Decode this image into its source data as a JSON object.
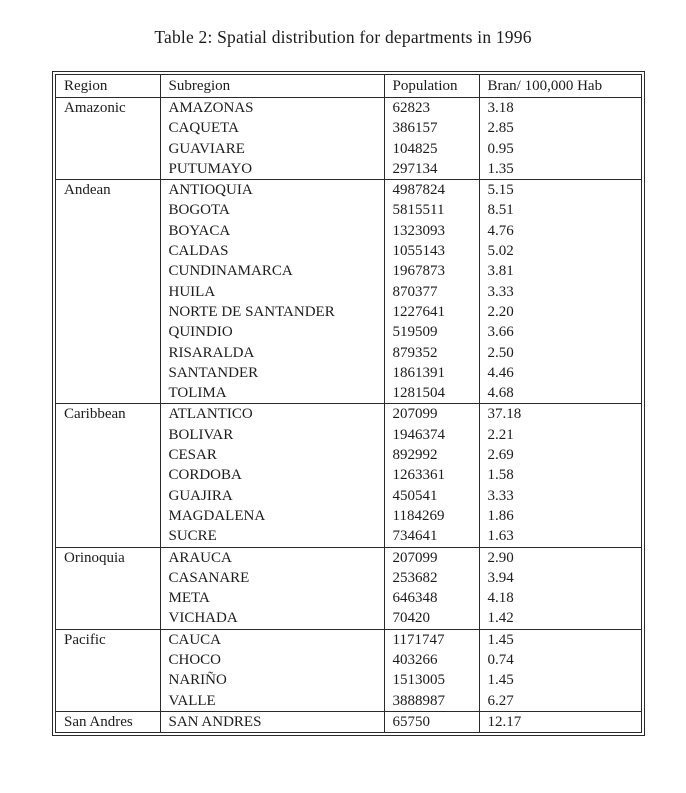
{
  "title": "Table 2: Spatial distribution for departments in 1996",
  "colors": {
    "background": "#ffffff",
    "text": "#1c1c1c",
    "border": "#2a2a2a"
  },
  "table": {
    "columns": [
      "Region",
      "Subregion",
      "Population",
      "Bran/ 100,000 Hab"
    ],
    "groups": [
      {
        "region": "Amazonic",
        "rows": [
          {
            "subregion": "AMAZONAS",
            "population": "62823",
            "rate": "3.18"
          },
          {
            "subregion": "CAQUETA",
            "population": "386157",
            "rate": "2.85"
          },
          {
            "subregion": "GUAVIARE",
            "population": "104825",
            "rate": "0.95"
          },
          {
            "subregion": "PUTUMAYO",
            "population": "297134",
            "rate": "1.35"
          }
        ]
      },
      {
        "region": "Andean",
        "rows": [
          {
            "subregion": "ANTIOQUIA",
            "population": "4987824",
            "rate": "5.15"
          },
          {
            "subregion": "BOGOTA",
            "population": "5815511",
            "rate": "8.51"
          },
          {
            "subregion": "BOYACA",
            "population": "1323093",
            "rate": "4.76"
          },
          {
            "subregion": "CALDAS",
            "population": "1055143",
            "rate": "5.02"
          },
          {
            "subregion": "CUNDINAMARCA",
            "population": "1967873",
            "rate": "3.81"
          },
          {
            "subregion": "HUILA",
            "population": "870377",
            "rate": "3.33"
          },
          {
            "subregion": "NORTE DE SANTANDER",
            "population": "1227641",
            "rate": "2.20"
          },
          {
            "subregion": "QUINDIO",
            "population": "519509",
            "rate": "3.66"
          },
          {
            "subregion": "RISARALDA",
            "population": "879352",
            "rate": "2.50"
          },
          {
            "subregion": "SANTANDER",
            "population": "1861391",
            "rate": "4.46"
          },
          {
            "subregion": "TOLIMA",
            "population": "1281504",
            "rate": "4.68"
          }
        ]
      },
      {
        "region": "Caribbean",
        "rows": [
          {
            "subregion": "ATLANTICO",
            "population": "207099",
            "rate": "37.18"
          },
          {
            "subregion": "BOLIVAR",
            "population": "1946374",
            "rate": "2.21"
          },
          {
            "subregion": "CESAR",
            "population": "892992",
            "rate": "2.69"
          },
          {
            "subregion": "CORDOBA",
            "population": "1263361",
            "rate": "1.58"
          },
          {
            "subregion": "GUAJIRA",
            "population": "450541",
            "rate": "3.33"
          },
          {
            "subregion": "MAGDALENA",
            "population": "1184269",
            "rate": "1.86"
          },
          {
            "subregion": "SUCRE",
            "population": "734641",
            "rate": "1.63"
          }
        ]
      },
      {
        "region": "Orinoquia",
        "rows": [
          {
            "subregion": "ARAUCA",
            "population": "207099",
            "rate": "2.90"
          },
          {
            "subregion": "CASANARE",
            "population": "253682",
            "rate": "3.94"
          },
          {
            "subregion": "META",
            "population": "646348",
            "rate": "4.18"
          },
          {
            "subregion": "VICHADA",
            "population": "70420",
            "rate": "1.42"
          }
        ]
      },
      {
        "region": "Pacific",
        "rows": [
          {
            "subregion": "CAUCA",
            "population": "1171747",
            "rate": "1.45"
          },
          {
            "subregion": "CHOCO",
            "population": "403266",
            "rate": "0.74"
          },
          {
            "subregion": "NARIÑO",
            "population": "1513005",
            "rate": "1.45"
          },
          {
            "subregion": "VALLE",
            "population": "3888987",
            "rate": "6.27"
          }
        ]
      },
      {
        "region": "San Andres",
        "rows": [
          {
            "subregion": "SAN ANDRES",
            "population": "65750",
            "rate": "12.17"
          }
        ]
      }
    ]
  }
}
